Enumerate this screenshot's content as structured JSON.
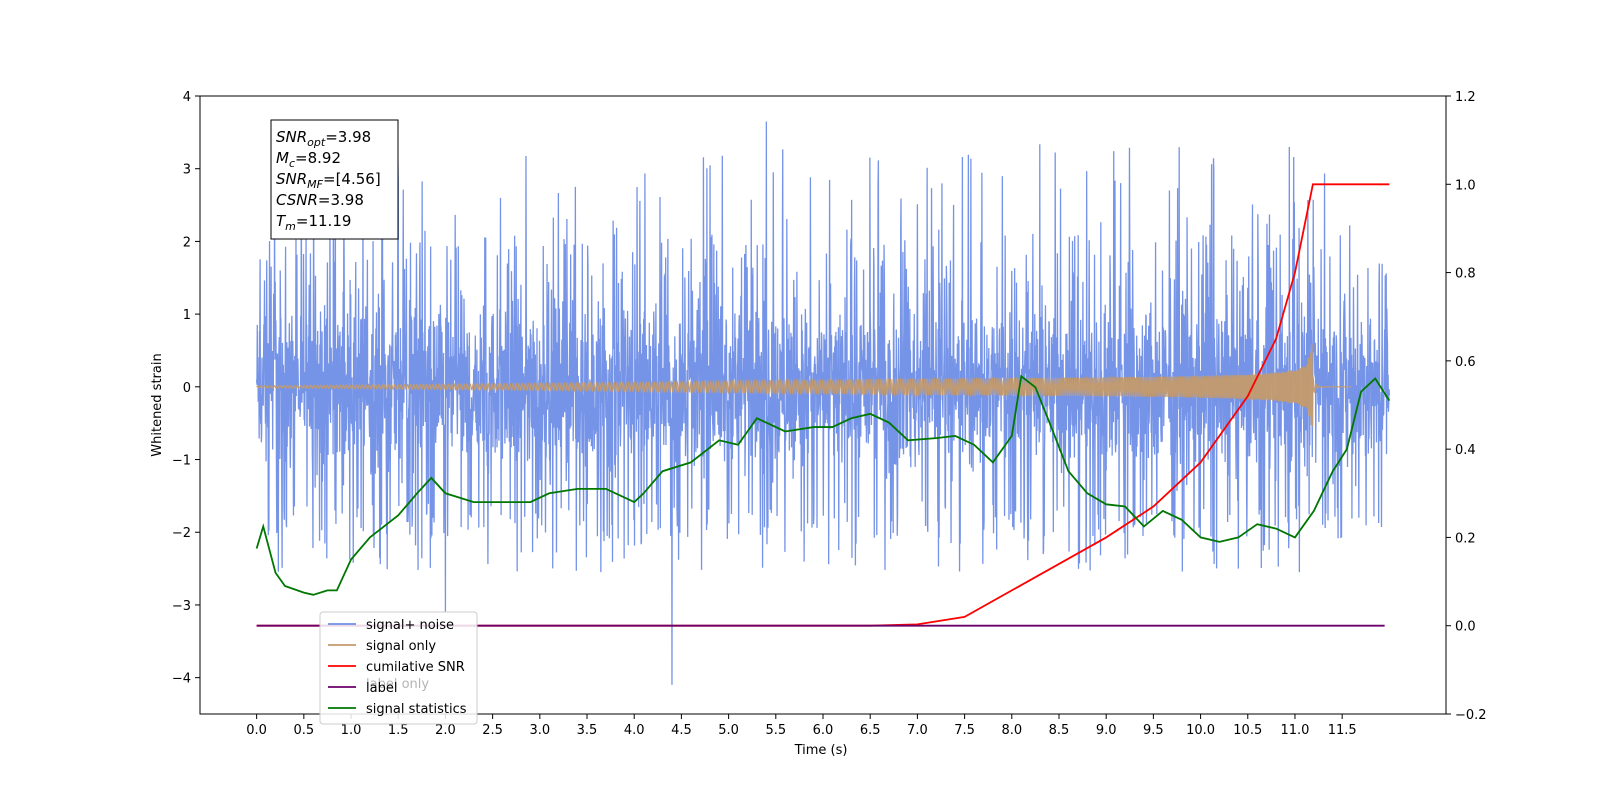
{
  "chart_data": {
    "type": "line",
    "title": "",
    "xlabel": "Time (s)",
    "ylabel_left": "Whitened strain",
    "ylabel_right": "",
    "xlim": [
      -0.6,
      12.6
    ],
    "ylim_left": [
      -4.5,
      4.0
    ],
    "ylim_right": [
      -0.2,
      1.2
    ],
    "x_ticks": [
      "0.0",
      "0.5",
      "1.0",
      "1.5",
      "2.0",
      "2.5",
      "3.0",
      "3.5",
      "4.0",
      "4.5",
      "5.0",
      "5.5",
      "6.0",
      "6.5",
      "7.0",
      "7.5",
      "8.0",
      "8.5",
      "9.0",
      "9.5",
      "10.0",
      "10.5",
      "11.0",
      "11.5"
    ],
    "y_ticks_left": [
      "−4",
      "−3",
      "−2",
      "−1",
      "0",
      "1",
      "2",
      "3",
      "4"
    ],
    "y_ticks_right": [
      "−0.2",
      "0.0",
      "0.2",
      "0.4",
      "0.6",
      "0.8",
      "1.0",
      "1.2"
    ],
    "grid": false,
    "legend_position": "bottom-left",
    "annotation": {
      "lines": [
        {
          "base": "SNR",
          "sub": "opt",
          "rest": "=3.98"
        },
        {
          "base": "M",
          "sub": "c",
          "rest": "=8.92"
        },
        {
          "base": "SNR",
          "sub": "MF",
          "rest": "=[4.56]"
        },
        {
          "base": "CSNR",
          "sub": "",
          "rest": "=3.98"
        },
        {
          "base": "T",
          "sub": "m",
          "rest": "=11.19"
        }
      ]
    },
    "series": [
      {
        "name": "signal+ noise",
        "color": "#6f8ee6",
        "axis": "left",
        "kind": "noise",
        "x_range": [
          0.0,
          12.0
        ],
        "band": [
          -1.75,
          1.4
        ],
        "spike_min": -4.1,
        "spike_max": 3.65
      },
      {
        "name": "signal only",
        "color": "#c49a6c",
        "axis": "left",
        "kind": "chirp",
        "x_range": [
          0.0,
          11.6
        ],
        "merger_time": 11.19,
        "peak_amplitude": 0.5
      },
      {
        "name": "cumilative SNR",
        "color": "#ff0000",
        "axis": "right",
        "points": [
          [
            0.0,
            0.0
          ],
          [
            6.5,
            0.0
          ],
          [
            7.0,
            0.003
          ],
          [
            7.5,
            0.02
          ],
          [
            8.0,
            0.08
          ],
          [
            8.5,
            0.14
          ],
          [
            9.0,
            0.2
          ],
          [
            9.5,
            0.27
          ],
          [
            10.0,
            0.37
          ],
          [
            10.5,
            0.52
          ],
          [
            10.8,
            0.65
          ],
          [
            11.0,
            0.8
          ],
          [
            11.19,
            1.0
          ],
          [
            11.6,
            1.0
          ],
          [
            12.0,
            1.0
          ]
        ]
      },
      {
        "name": "label",
        "color": "#6a006a",
        "axis": "right",
        "points": [
          [
            0.0,
            0.0
          ],
          [
            11.95,
            0.0
          ]
        ]
      },
      {
        "name": "signal statistics",
        "color": "#007700",
        "axis": "right",
        "points": [
          [
            0.0,
            0.175
          ],
          [
            0.07,
            0.225
          ],
          [
            0.2,
            0.12
          ],
          [
            0.3,
            0.09
          ],
          [
            0.5,
            0.075
          ],
          [
            0.6,
            0.07
          ],
          [
            0.75,
            0.08
          ],
          [
            0.85,
            0.08
          ],
          [
            1.0,
            0.15
          ],
          [
            1.2,
            0.2
          ],
          [
            1.5,
            0.25
          ],
          [
            1.7,
            0.3
          ],
          [
            1.85,
            0.335
          ],
          [
            2.0,
            0.3
          ],
          [
            2.3,
            0.28
          ],
          [
            2.6,
            0.28
          ],
          [
            2.9,
            0.28
          ],
          [
            3.1,
            0.3
          ],
          [
            3.4,
            0.31
          ],
          [
            3.7,
            0.31
          ],
          [
            4.0,
            0.28
          ],
          [
            4.1,
            0.3
          ],
          [
            4.3,
            0.35
          ],
          [
            4.6,
            0.37
          ],
          [
            4.9,
            0.42
          ],
          [
            5.1,
            0.41
          ],
          [
            5.3,
            0.47
          ],
          [
            5.6,
            0.44
          ],
          [
            5.9,
            0.45
          ],
          [
            6.1,
            0.45
          ],
          [
            6.3,
            0.47
          ],
          [
            6.5,
            0.48
          ],
          [
            6.7,
            0.46
          ],
          [
            6.9,
            0.42
          ],
          [
            7.2,
            0.425
          ],
          [
            7.4,
            0.43
          ],
          [
            7.6,
            0.41
          ],
          [
            7.8,
            0.37
          ],
          [
            8.0,
            0.43
          ],
          [
            8.1,
            0.565
          ],
          [
            8.25,
            0.54
          ],
          [
            8.4,
            0.46
          ],
          [
            8.6,
            0.35
          ],
          [
            8.8,
            0.3
          ],
          [
            9.0,
            0.275
          ],
          [
            9.2,
            0.27
          ],
          [
            9.4,
            0.225
          ],
          [
            9.6,
            0.26
          ],
          [
            9.8,
            0.24
          ],
          [
            10.0,
            0.2
          ],
          [
            10.2,
            0.19
          ],
          [
            10.4,
            0.2
          ],
          [
            10.6,
            0.23
          ],
          [
            10.8,
            0.22
          ],
          [
            11.0,
            0.2
          ],
          [
            11.2,
            0.26
          ],
          [
            11.4,
            0.35
          ],
          [
            11.55,
            0.4
          ],
          [
            11.7,
            0.53
          ],
          [
            11.85,
            0.56
          ],
          [
            12.0,
            0.51
          ]
        ]
      }
    ],
    "legend_extra": [
      "label only"
    ]
  }
}
